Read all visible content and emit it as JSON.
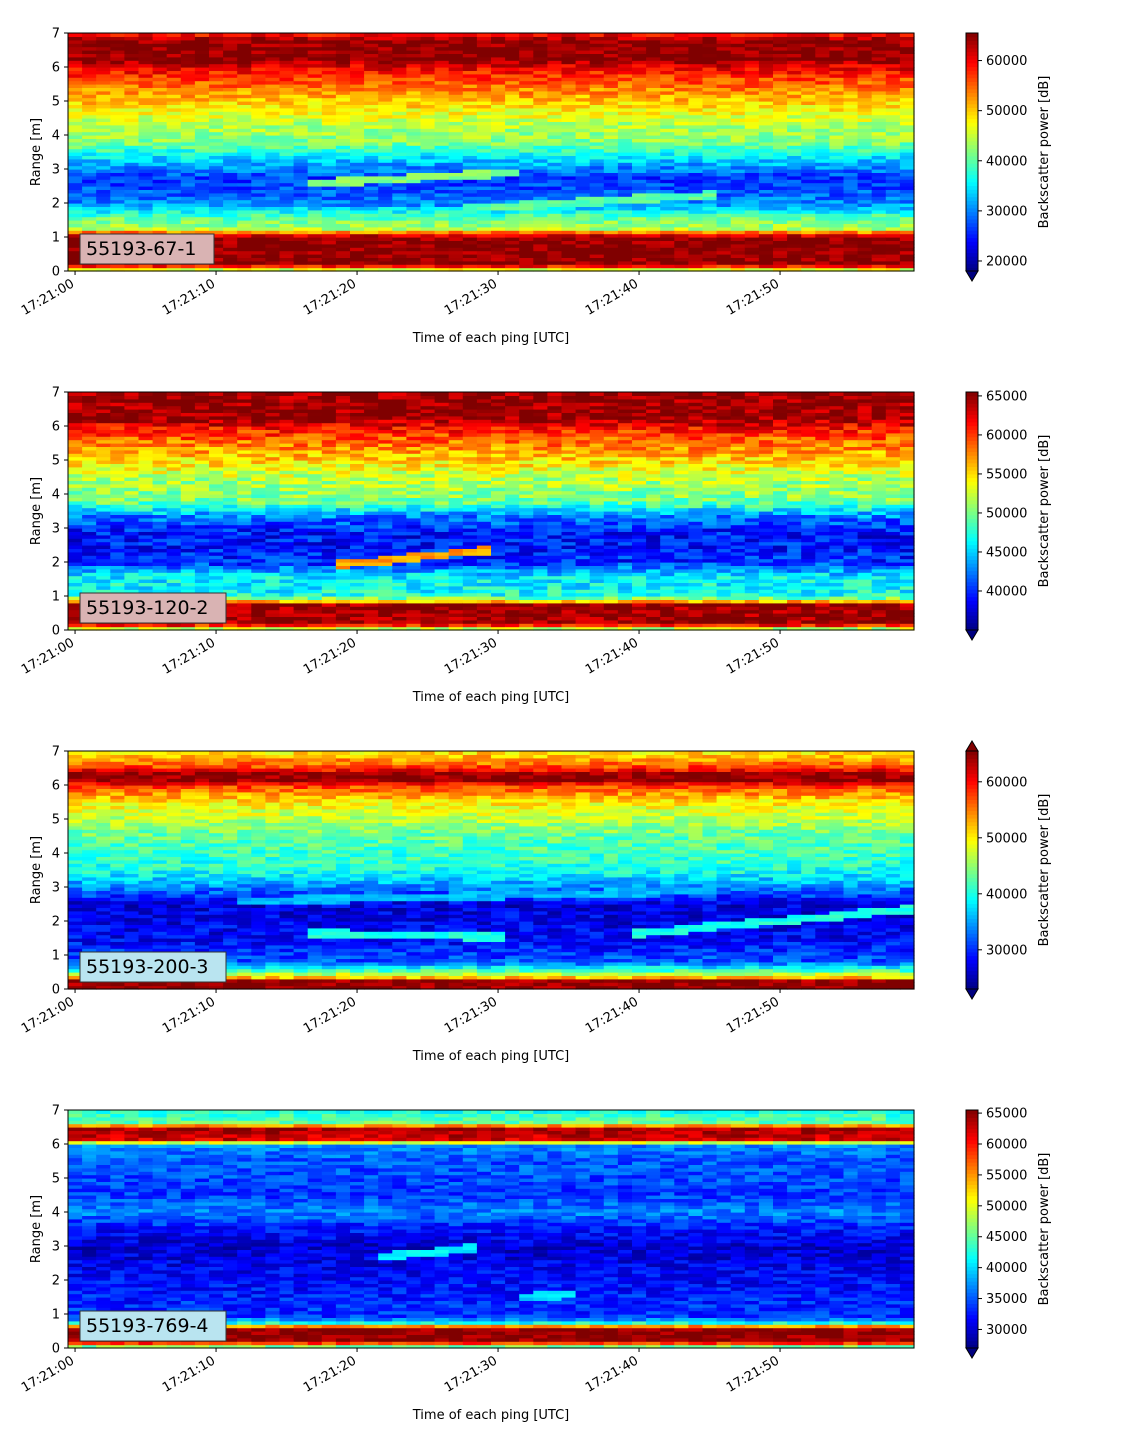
{
  "figure": {
    "xlabel": "Time of each ping [UTC]",
    "ylabel": "Range [m]",
    "colorbar_label": "Backscatter power [dB]",
    "colormap": "jet",
    "x_tick_labels": [
      "17:21:00",
      "17:21:10",
      "17:21:20",
      "17:21:30",
      "17:21:40",
      "17:21:50"
    ]
  },
  "chart_data": [
    {
      "type": "heatmap",
      "tag": "55193-67-1",
      "tag_bg": "#d9b3b3",
      "x_range": [
        "17:20:59.5",
        "17:21:59.5"
      ],
      "ylim": [
        0,
        7
      ],
      "y_ticks": [
        0,
        1,
        2,
        3,
        4,
        5,
        6,
        7
      ],
      "clim": [
        18000,
        65500
      ],
      "colorbar_ticks": [
        20000,
        30000,
        40000,
        50000,
        60000
      ],
      "colorbar_extend": "min",
      "profile": [
        {
          "range": 0.0,
          "value": 40000
        },
        {
          "range": 0.2,
          "value": 65000
        },
        {
          "range": 1.0,
          "value": 65000
        },
        {
          "range": 1.1,
          "value": 58000
        },
        {
          "range": 1.25,
          "value": 44000
        },
        {
          "range": 1.6,
          "value": 40000
        },
        {
          "range": 2.0,
          "value": 30000
        },
        {
          "range": 2.7,
          "value": 26000
        },
        {
          "range": 3.3,
          "value": 34000
        },
        {
          "range": 3.8,
          "value": 42000
        },
        {
          "range": 4.3,
          "value": 44000
        },
        {
          "range": 5.2,
          "value": 52000
        },
        {
          "range": 5.8,
          "value": 58000
        },
        {
          "range": 6.1,
          "value": 62000
        },
        {
          "range": 6.2,
          "value": 65000
        },
        {
          "range": 6.8,
          "value": 65000
        },
        {
          "range": 7.0,
          "value": 58000
        }
      ],
      "noise": 3500,
      "tracks": [
        {
          "start": "17:21:17",
          "end": "17:21:31",
          "range_start": 2.6,
          "range_end": 2.9,
          "value": 42000
        },
        {
          "start": "17:21:28",
          "end": "17:21:45",
          "range_start": 1.85,
          "range_end": 2.25,
          "value": 40000
        }
      ]
    },
    {
      "type": "heatmap",
      "tag": "55193-120-2",
      "tag_bg": "#d9b3b3",
      "x_range": [
        "17:20:59.5",
        "17:21:59.5"
      ],
      "ylim": [
        0,
        7
      ],
      "y_ticks": [
        0,
        1,
        2,
        3,
        4,
        5,
        6,
        7
      ],
      "clim": [
        35000,
        65500
      ],
      "colorbar_ticks": [
        40000,
        45000,
        50000,
        55000,
        60000,
        65000
      ],
      "colorbar_extend": "min",
      "profile": [
        {
          "range": 0.0,
          "value": 48000
        },
        {
          "range": 0.2,
          "value": 65000
        },
        {
          "range": 0.75,
          "value": 65000
        },
        {
          "range": 0.85,
          "value": 56000
        },
        {
          "range": 1.0,
          "value": 47000
        },
        {
          "range": 1.6,
          "value": 46000
        },
        {
          "range": 2.0,
          "value": 40000
        },
        {
          "range": 2.8,
          "value": 39000
        },
        {
          "range": 3.3,
          "value": 42000
        },
        {
          "range": 3.8,
          "value": 50000
        },
        {
          "range": 4.5,
          "value": 52000
        },
        {
          "range": 5.3,
          "value": 57000
        },
        {
          "range": 5.8,
          "value": 60000
        },
        {
          "range": 6.1,
          "value": 63000
        },
        {
          "range": 6.2,
          "value": 65000
        },
        {
          "range": 7.0,
          "value": 65000
        }
      ],
      "noise": 2800,
      "tracks": [
        {
          "start": "17:21:19",
          "end": "17:21:29",
          "range_start": 1.95,
          "range_end": 2.35,
          "value": 57000
        }
      ]
    },
    {
      "type": "heatmap",
      "tag": "55193-200-3",
      "tag_bg": "#b9e4f0",
      "x_range": [
        "17:20:59.5",
        "17:21:59.5"
      ],
      "ylim": [
        0,
        7
      ],
      "y_ticks": [
        0,
        1,
        2,
        3,
        4,
        5,
        6,
        7
      ],
      "clim": [
        23000,
        65500
      ],
      "colorbar_ticks": [
        30000,
        40000,
        50000,
        60000
      ],
      "colorbar_extend": "both",
      "profile": [
        {
          "range": 0.0,
          "value": 50000
        },
        {
          "range": 0.05,
          "value": 65000
        },
        {
          "range": 0.25,
          "value": 65000
        },
        {
          "range": 0.35,
          "value": 52000
        },
        {
          "range": 0.55,
          "value": 42000
        },
        {
          "range": 0.8,
          "value": 32000
        },
        {
          "range": 1.5,
          "value": 28000
        },
        {
          "range": 2.5,
          "value": 27000
        },
        {
          "range": 3.0,
          "value": 34000
        },
        {
          "range": 3.5,
          "value": 40000
        },
        {
          "range": 4.5,
          "value": 43000
        },
        {
          "range": 5.5,
          "value": 50000
        },
        {
          "range": 6.0,
          "value": 58000
        },
        {
          "range": 6.15,
          "value": 65000
        },
        {
          "range": 6.35,
          "value": 65000
        },
        {
          "range": 6.5,
          "value": 58000
        },
        {
          "range": 7.0,
          "value": 50000
        }
      ],
      "noise": 3200,
      "tracks": [
        {
          "start": "17:21:17",
          "end": "17:21:30",
          "range_start": 1.65,
          "range_end": 1.55,
          "value": 40000
        },
        {
          "start": "17:21:40",
          "end": "17:21:59",
          "range_start": 1.65,
          "range_end": 2.35,
          "value": 40000
        },
        {
          "start": "17:21:12",
          "end": "17:21:45",
          "range_start": 2.6,
          "range_end": 2.9,
          "value": 36000
        }
      ]
    },
    {
      "type": "heatmap",
      "tag": "55193-769-4",
      "tag_bg": "#b9e4f0",
      "x_range": [
        "17:20:59.5",
        "17:21:59.5"
      ],
      "ylim": [
        0,
        7
      ],
      "y_ticks": [
        0,
        1,
        2,
        3,
        4,
        5,
        6,
        7
      ],
      "clim": [
        27000,
        65500
      ],
      "colorbar_ticks": [
        30000,
        35000,
        40000,
        45000,
        50000,
        55000,
        60000,
        65000
      ],
      "colorbar_extend": "min",
      "profile": [
        {
          "range": 0.0,
          "value": 40000
        },
        {
          "range": 0.2,
          "value": 65000
        },
        {
          "range": 0.6,
          "value": 65000
        },
        {
          "range": 0.7,
          "value": 45000
        },
        {
          "range": 0.9,
          "value": 34000
        },
        {
          "range": 2.0,
          "value": 32000
        },
        {
          "range": 3.0,
          "value": 30000
        },
        {
          "range": 3.6,
          "value": 33000
        },
        {
          "range": 4.0,
          "value": 37000
        },
        {
          "range": 4.5,
          "value": 34000
        },
        {
          "range": 5.5,
          "value": 35000
        },
        {
          "range": 6.0,
          "value": 37000
        },
        {
          "range": 6.1,
          "value": 62000
        },
        {
          "range": 6.5,
          "value": 64000
        },
        {
          "range": 6.6,
          "value": 46000
        },
        {
          "range": 7.0,
          "value": 42000
        }
      ],
      "noise": 2600,
      "tracks": [
        {
          "start": "17:21:22",
          "end": "17:21:28",
          "range_start": 2.7,
          "range_end": 2.95,
          "value": 41000
        },
        {
          "start": "17:21:32",
          "end": "17:21:35",
          "range_start": 1.5,
          "range_end": 1.6,
          "value": 40000
        }
      ]
    }
  ]
}
